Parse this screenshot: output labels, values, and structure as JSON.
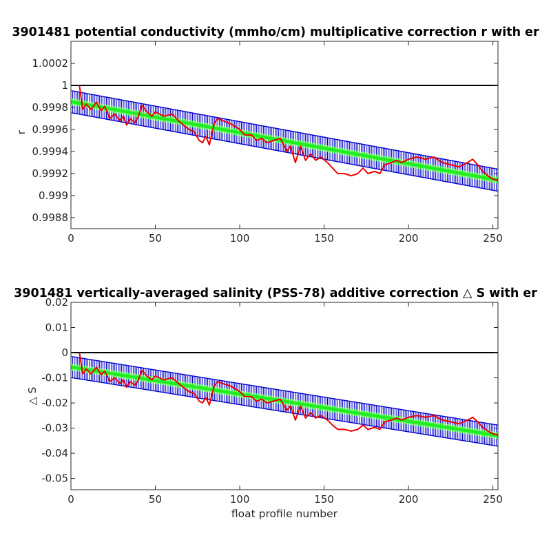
{
  "chart_data": [
    {
      "type": "line",
      "title": "3901481 potential conductivity (mmho/cm) multiplicative correction r with er",
      "xlabel": "",
      "ylabel": "r",
      "xlim": [
        0,
        253
      ],
      "ylim": [
        0.9987,
        1.0004
      ],
      "xticks": [
        0,
        50,
        100,
        150,
        200,
        250
      ],
      "yticks": [
        0.9988,
        0.999,
        0.9992,
        0.9994,
        0.9996,
        0.9998,
        1,
        1.0002
      ],
      "xtick_labels": [
        "0",
        "50",
        "100",
        "150",
        "200",
        "250"
      ],
      "ytick_labels": [
        "0.9988",
        "0.999",
        "0.9992",
        "0.9994",
        "0.9996",
        "0.9998",
        "1",
        "1.0002"
      ],
      "reference_line": {
        "y": 1,
        "color": "#000000"
      },
      "fit": {
        "x0": 1,
        "x1": 253,
        "y0": 0.99985,
        "y1": 0.99914,
        "err_half_width": 0.0001,
        "color": "#22ee22",
        "error_bar_color": "#0000cc"
      },
      "series": [
        {
          "color": "#ee0000",
          "x": [
            5,
            7,
            9,
            12,
            15,
            18,
            20,
            23,
            26,
            29,
            31,
            33,
            35,
            38,
            40,
            42,
            45,
            48,
            50,
            55,
            60,
            65,
            70,
            73,
            76,
            78,
            80,
            82,
            85,
            87,
            90,
            95,
            100,
            103,
            107,
            110,
            113,
            116,
            120,
            124,
            128,
            130,
            133,
            136,
            139,
            142,
            145,
            148,
            152,
            155,
            158,
            162,
            166,
            170,
            173,
            176,
            180,
            183,
            186,
            190,
            193,
            196,
            200,
            205,
            210,
            215,
            220,
            225,
            230,
            235,
            238,
            241,
            244,
            247,
            250,
            253
          ],
          "y": [
            1.0,
            0.99978,
            0.99983,
            0.99978,
            0.99985,
            0.99977,
            0.99981,
            0.9997,
            0.99974,
            0.99968,
            0.99972,
            0.99964,
            0.9997,
            0.99966,
            0.99972,
            0.99982,
            0.99976,
            0.99972,
            0.99976,
            0.99972,
            0.99974,
            0.99966,
            0.9996,
            0.99958,
            0.9995,
            0.99948,
            0.99954,
            0.99946,
            0.99966,
            0.9997,
            0.99968,
            0.99965,
            0.9996,
            0.99955,
            0.99955,
            0.9995,
            0.99952,
            0.99948,
            0.9995,
            0.99952,
            0.9994,
            0.99945,
            0.9993,
            0.99945,
            0.99932,
            0.99938,
            0.99932,
            0.99935,
            0.9993,
            0.99925,
            0.9992,
            0.9992,
            0.99918,
            0.9992,
            0.99925,
            0.9992,
            0.99922,
            0.9992,
            0.99928,
            0.9993,
            0.99932,
            0.9993,
            0.99933,
            0.99935,
            0.99933,
            0.99935,
            0.9993,
            0.99928,
            0.99926,
            0.9993,
            0.99933,
            0.99928,
            0.99922,
            0.99918,
            0.99915,
            0.99914
          ]
        }
      ]
    },
    {
      "type": "line",
      "title": "3901481 vertically-averaged salinity (PSS-78) additive correction △ S with er",
      "xlabel": "float profile number",
      "ylabel": "△ S",
      "xlim": [
        0,
        253
      ],
      "ylim": [
        -0.0545,
        0.02
      ],
      "xticks": [
        0,
        50,
        100,
        150,
        200,
        250
      ],
      "yticks": [
        -0.05,
        -0.04,
        -0.03,
        -0.02,
        -0.01,
        0,
        0.01,
        0.02
      ],
      "xtick_labels": [
        "0",
        "50",
        "100",
        "150",
        "200",
        "250"
      ],
      "ytick_labels": [
        "-0.05",
        "-0.04",
        "-0.03",
        "-0.02",
        "-0.01",
        "0",
        "0.01",
        "0.02"
      ],
      "reference_line": {
        "y": 0,
        "color": "#000000"
      },
      "fit": {
        "x0": 1,
        "x1": 253,
        "y0": -0.0058,
        "y1": -0.033,
        "err_half_width": 0.0042,
        "color": "#22ee22",
        "error_bar_color": "#0000cc"
      },
      "series": [
        {
          "color": "#ee0000",
          "x": [
            5,
            7,
            9,
            12,
            15,
            18,
            20,
            23,
            26,
            29,
            31,
            33,
            35,
            38,
            40,
            42,
            45,
            48,
            50,
            55,
            60,
            65,
            70,
            73,
            76,
            78,
            80,
            82,
            85,
            87,
            90,
            95,
            100,
            103,
            107,
            110,
            113,
            116,
            120,
            124,
            128,
            130,
            133,
            136,
            139,
            142,
            145,
            148,
            152,
            155,
            158,
            162,
            166,
            170,
            173,
            176,
            180,
            183,
            186,
            190,
            193,
            196,
            200,
            205,
            210,
            215,
            220,
            225,
            230,
            235,
            238,
            241,
            244,
            247,
            250,
            253
          ],
          "y": [
            0.0,
            -0.0085,
            -0.0065,
            -0.0085,
            -0.0058,
            -0.0088,
            -0.0073,
            -0.0115,
            -0.01,
            -0.0123,
            -0.0108,
            -0.0138,
            -0.0115,
            -0.013,
            -0.0108,
            -0.007,
            -0.0093,
            -0.0108,
            -0.0093,
            -0.0108,
            -0.01,
            -0.013,
            -0.0155,
            -0.0162,
            -0.0193,
            -0.02,
            -0.0178,
            -0.0208,
            -0.013,
            -0.0115,
            -0.0123,
            -0.0134,
            -0.0155,
            -0.0175,
            -0.0175,
            -0.0193,
            -0.0185,
            -0.02,
            -0.0193,
            -0.0185,
            -0.023,
            -0.0212,
            -0.0268,
            -0.0212,
            -0.026,
            -0.0238,
            -0.026,
            -0.025,
            -0.0268,
            -0.0288,
            -0.0305,
            -0.0305,
            -0.0312,
            -0.0305,
            -0.0288,
            -0.0305,
            -0.0297,
            -0.0305,
            -0.0275,
            -0.0268,
            -0.026,
            -0.0268,
            -0.0257,
            -0.025,
            -0.0257,
            -0.025,
            -0.0268,
            -0.0275,
            -0.0283,
            -0.0268,
            -0.0257,
            -0.0275,
            -0.0297,
            -0.0312,
            -0.0323,
            -0.0327
          ]
        }
      ]
    }
  ]
}
